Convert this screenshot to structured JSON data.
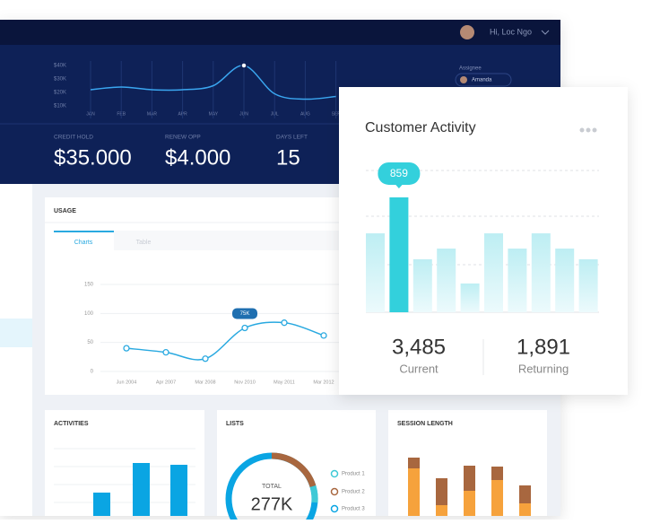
{
  "header": {
    "greeting": "Hi, Loc Ngo"
  },
  "hero": {
    "type": "line",
    "yticks": [
      {
        "value": 40000,
        "label": "$40K"
      },
      {
        "value": 30000,
        "label": "$30K"
      },
      {
        "value": 20000,
        "label": "$20K"
      },
      {
        "value": 10000,
        "label": "$10K"
      }
    ],
    "ylim": [
      0,
      40000
    ],
    "categories": [
      "JAN",
      "FEB",
      "MAR",
      "APR",
      "MAY",
      "JUN",
      "JUL",
      "AUG",
      "SEP"
    ],
    "values": [
      22000,
      24000,
      22000,
      22000,
      25000,
      40000,
      19000,
      15000,
      17000
    ],
    "color": "#3aa6f0",
    "assignee_label": "Assignee",
    "assignee": "Amanda",
    "stats": [
      {
        "label": "CREDIT HOLD",
        "value": "$35.000"
      },
      {
        "label": "RENEW OPP",
        "value": "$4.000"
      },
      {
        "label": "DAYS LEFT",
        "value": "15"
      }
    ]
  },
  "usage": {
    "type": "line",
    "title": "USAGE",
    "tabs": [
      "Charts",
      "Table"
    ],
    "ylim": [
      0,
      150
    ],
    "yticks": [
      0,
      50,
      100,
      150
    ],
    "categories": [
      "Jun 2004",
      "Apr 2007",
      "Mar 2008",
      "Nov 2010",
      "May 2011",
      "Mar 2012"
    ],
    "values": [
      40,
      33,
      22,
      75,
      84,
      62
    ],
    "value_labels": [
      null,
      null,
      null,
      "75K",
      null,
      null
    ],
    "color": "#29a9e0"
  },
  "cards": {
    "activities": "ACTIVITIES",
    "lists": {
      "title": "LISTS",
      "total_label": "TOTAL",
      "total": "277K",
      "legend": [
        "Product 1",
        "Product 2",
        "Product 3"
      ]
    },
    "session": "SESSION LENGTH"
  },
  "customer": {
    "type": "bar",
    "title": "Customer Activity",
    "ylim": [
      0,
      1060
    ],
    "values": [
      590,
      859,
      396,
      476,
      215,
      590,
      476,
      590,
      476,
      396
    ],
    "value_labels": [
      null,
      "859",
      null,
      null,
      null,
      null,
      null,
      null,
      null,
      null
    ],
    "highlight": "#33d0dc",
    "stats": [
      {
        "value": "3,485",
        "label": "Current"
      },
      {
        "value": "1,891",
        "label": "Returning"
      }
    ]
  }
}
